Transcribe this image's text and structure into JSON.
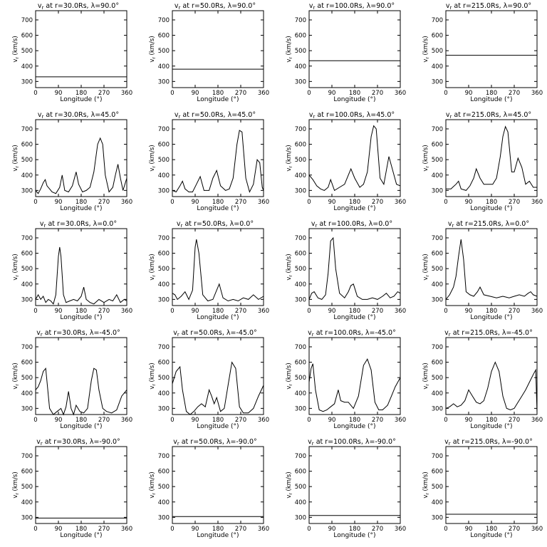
{
  "chart_data": [
    {
      "type": "line",
      "title": "v_r at r=30.0Rs, λ=90.0°",
      "title_parts": {
        "r": "30.0",
        "lat": "90.0"
      },
      "xlabel": "Longitude (°)",
      "ylabel": "v_r (km/s)",
      "xlim": [
        0,
        360
      ],
      "ylim": [
        260,
        760
      ],
      "xticks": [
        0,
        90,
        180,
        270,
        360
      ],
      "yticks": [
        300,
        400,
        500,
        600,
        700
      ],
      "x": [
        0,
        360
      ],
      "y": [
        330,
        330
      ]
    },
    {
      "type": "line",
      "title": "v_r at r=50.0Rs, λ=90.0°",
      "title_parts": {
        "r": "50.0",
        "lat": "90.0"
      },
      "xlabel": "Longitude (°)",
      "ylabel": "v_r (km/s)",
      "xlim": [
        0,
        360
      ],
      "ylim": [
        260,
        760
      ],
      "xticks": [
        0,
        90,
        180,
        270,
        360
      ],
      "yticks": [
        300,
        400,
        500,
        600,
        700
      ],
      "x": [
        0,
        360
      ],
      "y": [
        380,
        380
      ]
    },
    {
      "type": "line",
      "title": "v_r at r=100.0Rs, λ=90.0°",
      "title_parts": {
        "r": "100.0",
        "lat": "90.0"
      },
      "xlabel": "Longitude (°)",
      "ylabel": "v_r (km/s)",
      "xlim": [
        0,
        360
      ],
      "ylim": [
        260,
        760
      ],
      "xticks": [
        0,
        90,
        180,
        270,
        360
      ],
      "yticks": [
        300,
        400,
        500,
        600,
        700
      ],
      "x": [
        0,
        360
      ],
      "y": [
        435,
        435
      ]
    },
    {
      "type": "line",
      "title": "v_r at r=215.0Rs, λ=90.0°",
      "title_parts": {
        "r": "215.0",
        "lat": "90.0"
      },
      "xlabel": "Longitude (°)",
      "ylabel": "v_r (km/s)",
      "xlim": [
        0,
        360
      ],
      "ylim": [
        260,
        760
      ],
      "xticks": [
        0,
        90,
        180,
        270,
        360
      ],
      "yticks": [
        300,
        400,
        500,
        600,
        700
      ],
      "x": [
        0,
        360
      ],
      "y": [
        470,
        470
      ]
    },
    {
      "type": "line",
      "title": "v_r at r=30.0Rs, λ=45.0°",
      "title_parts": {
        "r": "30.0",
        "lat": "45.0"
      },
      "xlabel": "Longitude (°)",
      "ylabel": "v_r (km/s)",
      "xlim": [
        0,
        360
      ],
      "ylim": [
        260,
        760
      ],
      "xticks": [
        0,
        90,
        180,
        270,
        360
      ],
      "yticks": [
        300,
        400,
        500,
        600,
        700
      ],
      "x": [
        0,
        10,
        20,
        30,
        38,
        45,
        55,
        65,
        80,
        95,
        105,
        115,
        130,
        145,
        160,
        170,
        185,
        200,
        215,
        230,
        245,
        255,
        265,
        275,
        290,
        305,
        315,
        325,
        335,
        345,
        360
      ],
      "y": [
        300,
        280,
        310,
        350,
        370,
        330,
        310,
        290,
        280,
        320,
        400,
        300,
        290,
        330,
        420,
        340,
        290,
        300,
        320,
        420,
        600,
        640,
        600,
        400,
        290,
        320,
        400,
        470,
        380,
        300,
        380
      ]
    },
    {
      "type": "line",
      "title": "v_r at r=50.0Rs, λ=45.0°",
      "title_parts": {
        "r": "50.0",
        "lat": "45.0"
      },
      "xlabel": "Longitude (°)",
      "ylabel": "v_r (km/s)",
      "xlim": [
        0,
        360
      ],
      "ylim": [
        260,
        760
      ],
      "xticks": [
        0,
        90,
        180,
        270,
        360
      ],
      "yticks": [
        300,
        400,
        500,
        600,
        700
      ],
      "x": [
        0,
        15,
        30,
        40,
        50,
        65,
        80,
        95,
        110,
        125,
        145,
        160,
        175,
        190,
        210,
        225,
        240,
        255,
        265,
        275,
        290,
        305,
        320,
        335,
        345,
        355,
        360
      ],
      "y": [
        300,
        290,
        330,
        360,
        310,
        290,
        290,
        340,
        390,
        300,
        300,
        380,
        430,
        330,
        300,
        310,
        380,
        600,
        690,
        680,
        380,
        290,
        340,
        500,
        480,
        320,
        300
      ]
    },
    {
      "type": "line",
      "title": "v_r at r=100.0Rs, λ=45.0°",
      "title_parts": {
        "r": "100.0",
        "lat": "45.0"
      },
      "xlabel": "Longitude (°)",
      "ylabel": "v_r (km/s)",
      "xlim": [
        0,
        360
      ],
      "ylim": [
        260,
        760
      ],
      "xticks": [
        0,
        90,
        180,
        270,
        360
      ],
      "yticks": [
        300,
        400,
        500,
        600,
        700
      ],
      "x": [
        0,
        15,
        30,
        45,
        60,
        75,
        85,
        100,
        120,
        140,
        155,
        165,
        180,
        200,
        215,
        230,
        245,
        255,
        265,
        280,
        295,
        315,
        325,
        345,
        360
      ],
      "y": [
        400,
        370,
        330,
        310,
        300,
        320,
        370,
        300,
        320,
        340,
        400,
        440,
        380,
        320,
        340,
        420,
        650,
        720,
        700,
        380,
        340,
        520,
        460,
        340,
        330
      ]
    },
    {
      "type": "line",
      "title": "v_r at r=215.0Rs, λ=45.0°",
      "title_parts": {
        "r": "215.0",
        "lat": "45.0"
      },
      "xlabel": "Longitude (°)",
      "ylabel": "v_r (km/s)",
      "xlim": [
        0,
        360
      ],
      "ylim": [
        260,
        760
      ],
      "xticks": [
        0,
        90,
        180,
        270,
        360
      ],
      "yticks": [
        300,
        400,
        500,
        600,
        700
      ],
      "x": [
        0,
        20,
        40,
        50,
        60,
        80,
        95,
        110,
        120,
        135,
        150,
        165,
        185,
        200,
        215,
        225,
        235,
        245,
        260,
        270,
        285,
        300,
        315,
        330,
        345,
        360
      ],
      "y": [
        310,
        310,
        340,
        360,
        310,
        300,
        330,
        380,
        440,
        380,
        340,
        340,
        340,
        380,
        520,
        650,
        715,
        680,
        420,
        420,
        510,
        450,
        340,
        360,
        320,
        320
      ]
    },
    {
      "type": "line",
      "title": "v_r at r=30.0Rs, λ=0.0°",
      "title_parts": {
        "r": "30.0",
        "lat": "0.0"
      },
      "xlabel": "Longitude (°)",
      "ylabel": "v_r (km/s)",
      "xlim": [
        0,
        360
      ],
      "ylim": [
        260,
        760
      ],
      "xticks": [
        0,
        90,
        180,
        270,
        360
      ],
      "yticks": [
        300,
        400,
        500,
        600,
        700
      ],
      "x": [
        0,
        10,
        20,
        30,
        40,
        50,
        60,
        70,
        80,
        90,
        95,
        100,
        110,
        120,
        135,
        150,
        165,
        180,
        190,
        200,
        215,
        230,
        250,
        270,
        290,
        305,
        320,
        335,
        350,
        360
      ],
      "y": [
        300,
        330,
        300,
        320,
        280,
        300,
        290,
        270,
        330,
        580,
        640,
        580,
        330,
        280,
        290,
        300,
        290,
        320,
        380,
        300,
        280,
        270,
        300,
        280,
        300,
        290,
        330,
        280,
        300,
        290
      ]
    },
    {
      "type": "line",
      "title": "v_r at r=50.0Rs, λ=0.0°",
      "title_parts": {
        "r": "50.0",
        "lat": "0.0"
      },
      "xlabel": "Longitude (°)",
      "ylabel": "v_r (km/s)",
      "xlim": [
        0,
        360
      ],
      "ylim": [
        260,
        760
      ],
      "xticks": [
        0,
        90,
        180,
        270,
        360
      ],
      "yticks": [
        300,
        400,
        500,
        600,
        700
      ],
      "x": [
        0,
        10,
        20,
        35,
        50,
        65,
        80,
        90,
        95,
        105,
        120,
        140,
        160,
        175,
        185,
        200,
        220,
        240,
        260,
        280,
        300,
        320,
        340,
        360
      ],
      "y": [
        340,
        330,
        300,
        320,
        350,
        300,
        360,
        640,
        690,
        600,
        330,
        290,
        300,
        360,
        400,
        310,
        290,
        300,
        290,
        310,
        300,
        330,
        300,
        320
      ]
    },
    {
      "type": "line",
      "title": "v_r at r=100.0Rs, λ=0.0°",
      "title_parts": {
        "r": "100.0",
        "lat": "0.0"
      },
      "xlabel": "Longitude (°)",
      "ylabel": "v_r (km/s)",
      "xlim": [
        0,
        360
      ],
      "ylim": [
        260,
        760
      ],
      "xticks": [
        0,
        90,
        180,
        270,
        360
      ],
      "yticks": [
        300,
        400,
        500,
        600,
        700
      ],
      "x": [
        0,
        10,
        20,
        35,
        50,
        65,
        75,
        85,
        95,
        105,
        120,
        140,
        155,
        165,
        175,
        190,
        210,
        230,
        250,
        270,
        290,
        305,
        320,
        335,
        350,
        360
      ],
      "y": [
        300,
        340,
        350,
        310,
        300,
        330,
        470,
        680,
        700,
        500,
        340,
        310,
        350,
        390,
        400,
        320,
        300,
        300,
        310,
        300,
        320,
        340,
        310,
        320,
        350,
        340
      ]
    },
    {
      "type": "line",
      "title": "v_r at r=215.0Rs, λ=0.0°",
      "title_parts": {
        "r": "215.0",
        "lat": "0.0"
      },
      "xlabel": "Longitude (°)",
      "ylabel": "v_r (km/s)",
      "xlim": [
        0,
        360
      ],
      "ylim": [
        260,
        760
      ],
      "xticks": [
        0,
        90,
        180,
        270,
        360
      ],
      "yticks": [
        300,
        400,
        500,
        600,
        700
      ],
      "x": [
        0,
        15,
        30,
        40,
        50,
        60,
        70,
        80,
        95,
        110,
        125,
        135,
        150,
        175,
        200,
        225,
        250,
        270,
        290,
        310,
        325,
        335,
        345,
        360
      ],
      "y": [
        300,
        330,
        380,
        450,
        580,
        690,
        560,
        350,
        330,
        320,
        350,
        380,
        330,
        320,
        310,
        320,
        310,
        320,
        330,
        320,
        340,
        350,
        330,
        320
      ]
    },
    {
      "type": "line",
      "title": "v_r at r=30.0Rs, λ=-45.0°",
      "title_parts": {
        "r": "30.0",
        "lat": "-45.0"
      },
      "xlabel": "Longitude (°)",
      "ylabel": "v_r (km/s)",
      "xlim": [
        0,
        360
      ],
      "ylim": [
        260,
        760
      ],
      "xticks": [
        0,
        90,
        180,
        270,
        360
      ],
      "yticks": [
        300,
        400,
        500,
        600,
        700
      ],
      "x": [
        0,
        10,
        20,
        30,
        40,
        55,
        70,
        85,
        100,
        110,
        120,
        130,
        140,
        150,
        160,
        175,
        190,
        205,
        220,
        230,
        240,
        250,
        265,
        280,
        300,
        320,
        340,
        360
      ],
      "y": [
        420,
        440,
        480,
        540,
        560,
        300,
        260,
        280,
        300,
        260,
        310,
        410,
        300,
        260,
        320,
        280,
        270,
        300,
        480,
        560,
        550,
        420,
        300,
        280,
        270,
        290,
        380,
        420
      ]
    },
    {
      "type": "line",
      "title": "v_r at r=50.0Rs, λ=-45.0°",
      "title_parts": {
        "r": "50.0",
        "lat": "-45.0"
      },
      "xlabel": "Longitude (°)",
      "ylabel": "v_r (km/s)",
      "xlim": [
        0,
        360
      ],
      "ylim": [
        260,
        760
      ],
      "xticks": [
        0,
        90,
        180,
        270,
        360
      ],
      "yticks": [
        300,
        400,
        500,
        600,
        700
      ],
      "x": [
        0,
        15,
        30,
        40,
        55,
        70,
        85,
        100,
        115,
        130,
        145,
        155,
        165,
        175,
        190,
        205,
        220,
        235,
        250,
        265,
        280,
        300,
        320,
        340,
        360
      ],
      "y": [
        460,
        540,
        570,
        420,
        280,
        260,
        280,
        310,
        330,
        310,
        420,
        380,
        330,
        370,
        280,
        300,
        450,
        600,
        560,
        310,
        270,
        270,
        300,
        380,
        450
      ]
    },
    {
      "type": "line",
      "title": "v_r at r=100.0Rs, λ=-45.0°",
      "title_parts": {
        "r": "100.0",
        "lat": "-45.0"
      },
      "xlabel": "Longitude (°)",
      "ylabel": "v_r (km/s)",
      "xlim": [
        0,
        360
      ],
      "ylim": [
        260,
        760
      ],
      "xticks": [
        0,
        90,
        180,
        270,
        360
      ],
      "yticks": [
        300,
        400,
        500,
        600,
        700
      ],
      "x": [
        0,
        8,
        15,
        25,
        40,
        55,
        70,
        85,
        100,
        115,
        125,
        140,
        155,
        175,
        195,
        215,
        230,
        245,
        260,
        275,
        290,
        310,
        325,
        340,
        360
      ],
      "y": [
        470,
        560,
        590,
        420,
        290,
        280,
        290,
        310,
        330,
        420,
        350,
        340,
        340,
        300,
        380,
        580,
        620,
        550,
        340,
        290,
        290,
        320,
        380,
        440,
        500
      ]
    },
    {
      "type": "line",
      "title": "v_r at r=215.0Rs, λ=-45.0°",
      "title_parts": {
        "r": "215.0",
        "lat": "-45.0"
      },
      "xlabel": "Longitude (°)",
      "ylabel": "v_r (km/s)",
      "xlim": [
        0,
        360
      ],
      "ylim": [
        260,
        760
      ],
      "xticks": [
        0,
        90,
        180,
        270,
        360
      ],
      "yticks": [
        300,
        400,
        500,
        600,
        700
      ],
      "x": [
        0,
        15,
        30,
        45,
        60,
        75,
        90,
        105,
        120,
        135,
        150,
        165,
        180,
        195,
        210,
        225,
        240,
        255,
        270,
        285,
        300,
        315,
        330,
        345,
        355,
        360
      ],
      "y": [
        300,
        310,
        330,
        310,
        320,
        350,
        420,
        380,
        340,
        330,
        350,
        430,
        540,
        600,
        540,
        380,
        300,
        290,
        300,
        340,
        380,
        420,
        470,
        520,
        550,
        270
      ]
    },
    {
      "type": "line",
      "title": "v_r at r=30.0Rs, λ=-90.0°",
      "title_parts": {
        "r": "30.0",
        "lat": "-90.0"
      },
      "xlabel": "Longitude (°)",
      "ylabel": "v_r (km/s)",
      "xlim": [
        0,
        360
      ],
      "ylim": [
        260,
        760
      ],
      "xticks": [
        0,
        90,
        180,
        270,
        360
      ],
      "yticks": [
        300,
        400,
        500,
        600,
        700
      ],
      "x": [
        0,
        360
      ],
      "y": [
        295,
        295
      ]
    },
    {
      "type": "line",
      "title": "v_r at r=50.0Rs, λ=-90.0°",
      "title_parts": {
        "r": "50.0",
        "lat": "-90.0"
      },
      "xlabel": "Longitude (°)",
      "ylabel": "v_r (km/s)",
      "xlim": [
        0,
        360
      ],
      "ylim": [
        260,
        760
      ],
      "xticks": [
        0,
        90,
        180,
        270,
        360
      ],
      "yticks": [
        300,
        400,
        500,
        600,
        700
      ],
      "x": [
        0,
        360
      ],
      "y": [
        305,
        305
      ]
    },
    {
      "type": "line",
      "title": "v_r at r=100.0Rs, λ=-90.0°",
      "title_parts": {
        "r": "100.0",
        "lat": "-90.0"
      },
      "xlabel": "Longitude (°)",
      "ylabel": "v_r (km/s)",
      "xlim": [
        0,
        360
      ],
      "ylim": [
        260,
        760
      ],
      "xticks": [
        0,
        90,
        180,
        270,
        360
      ],
      "yticks": [
        300,
        400,
        500,
        600,
        700
      ],
      "x": [
        0,
        360
      ],
      "y": [
        312,
        312
      ]
    },
    {
      "type": "line",
      "title": "v_r at r=215.0Rs, λ=-90.0°",
      "title_parts": {
        "r": "215.0",
        "lat": "-90.0"
      },
      "xlabel": "Longitude (°)",
      "ylabel": "v_r (km/s)",
      "xlim": [
        0,
        360
      ],
      "ylim": [
        260,
        760
      ],
      "xticks": [
        0,
        90,
        180,
        270,
        360
      ],
      "yticks": [
        300,
        400,
        500,
        600,
        700
      ],
      "x": [
        0,
        360
      ],
      "y": [
        320,
        320
      ]
    }
  ]
}
